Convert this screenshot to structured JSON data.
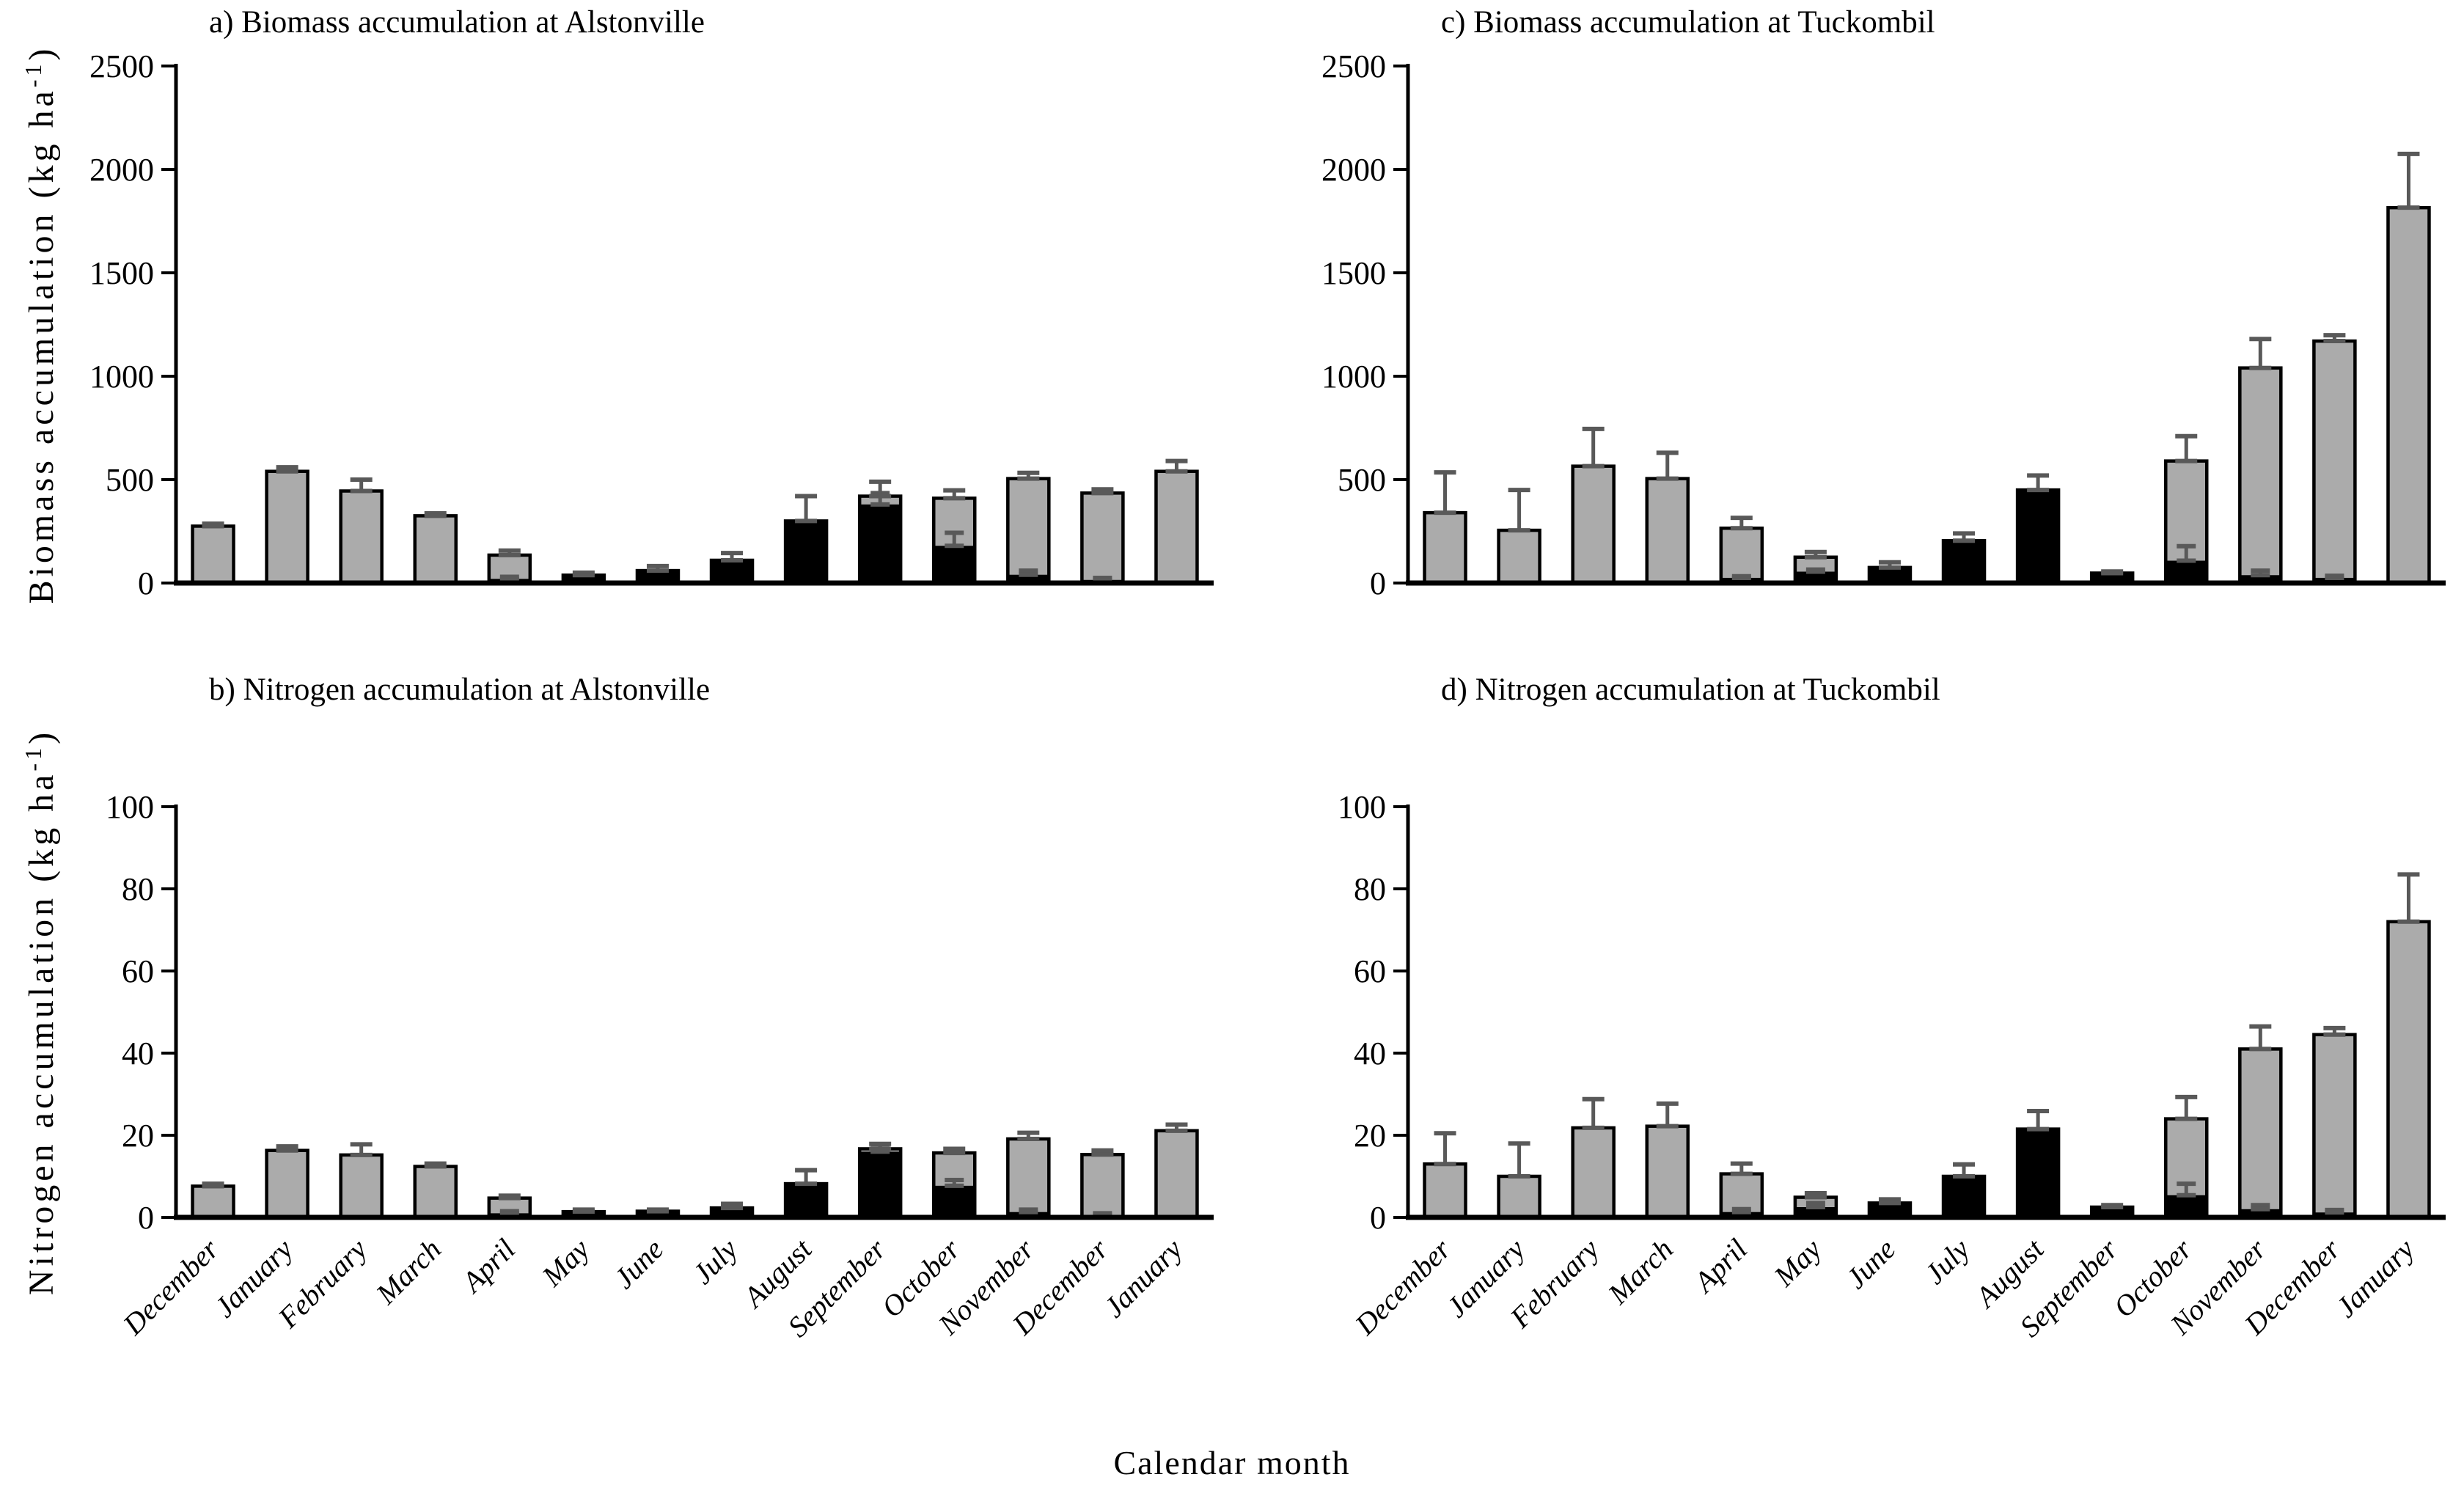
{
  "figure": {
    "xlabel": "Calendar month",
    "months": [
      "December",
      "January",
      "February",
      "March",
      "April",
      "May",
      "June",
      "July",
      "August",
      "September",
      "October",
      "November",
      "December",
      "January"
    ],
    "colors": {
      "grey_fill": "#ABABAB",
      "black_fill": "#000000",
      "bar_stroke": "#000000",
      "error_bar": "#595959",
      "axis": "#000000",
      "background": "#ffffff"
    }
  },
  "chart_data": [
    {
      "type": "bar",
      "panel": "a",
      "title": "a) Biomass accumulation at Alstonville",
      "ylabel": "Biomass accumulation (kg ha⁻¹)",
      "ylabel_parts": {
        "pre": "Biomass accumulation (kg ha",
        "sup": "-1",
        "post": ")"
      },
      "ylim": [
        0,
        2500
      ],
      "yticks": [
        0,
        500,
        1000,
        1500,
        2000,
        2500
      ],
      "grid": false,
      "legend": "none",
      "categories": [
        "December",
        "January",
        "February",
        "March",
        "April",
        "May",
        "June",
        "July",
        "August",
        "September",
        "October",
        "November",
        "December",
        "January"
      ],
      "series": [
        {
          "name": "black segment (lower)",
          "values": [
            0,
            0,
            0,
            0,
            20,
            38,
            60,
            110,
            300,
            380,
            180,
            40,
            15,
            0
          ]
        },
        {
          "name": "grey segment (upper)",
          "values": [
            275,
            540,
            445,
            325,
            115,
            0,
            0,
            0,
            0,
            40,
            230,
            465,
            420,
            540
          ]
        }
      ],
      "totals": [
        275,
        540,
        445,
        325,
        135,
        38,
        60,
        110,
        300,
        420,
        410,
        505,
        435,
        540
      ],
      "error_up_outer": [
        12,
        20,
        55,
        12,
        22,
        12,
        22,
        35,
        120,
        70,
        38,
        28,
        18,
        50
      ],
      "error_up_inner": [
        null,
        null,
        null,
        null,
        10,
        null,
        null,
        null,
        null,
        55,
        63,
        20,
        10,
        null
      ]
    },
    {
      "type": "bar",
      "panel": "c",
      "title": "c) Biomass accumulation at Tuckombil",
      "ylabel": null,
      "ylabel_parts": null,
      "ylim": [
        0,
        2500
      ],
      "yticks": [
        0,
        500,
        1000,
        1500,
        2000,
        2500
      ],
      "grid": false,
      "legend": "none",
      "categories": [
        "December",
        "January",
        "February",
        "March",
        "April",
        "May",
        "June",
        "July",
        "August",
        "September",
        "October",
        "November",
        "December",
        "January"
      ],
      "series": [
        {
          "name": "black segment (lower)",
          "values": [
            0,
            0,
            0,
            0,
            25,
            55,
            75,
            205,
            450,
            48,
            108,
            38,
            25,
            0
          ]
        },
        {
          "name": "grey segment (upper)",
          "values": [
            340,
            255,
            565,
            505,
            240,
            70,
            0,
            0,
            0,
            0,
            482,
            1002,
            1145,
            1815
          ]
        }
      ],
      "totals": [
        340,
        255,
        565,
        505,
        265,
        125,
        75,
        205,
        450,
        48,
        590,
        1040,
        1170,
        1815
      ],
      "error_up_outer": [
        195,
        195,
        180,
        125,
        50,
        25,
        25,
        35,
        70,
        8,
        120,
        140,
        28,
        260
      ],
      "error_up_inner": [
        null,
        null,
        null,
        null,
        8,
        10,
        null,
        null,
        null,
        null,
        70,
        22,
        10,
        null
      ]
    },
    {
      "type": "bar",
      "panel": "b",
      "title": "b) Nitrogen accumulation at Alstonville",
      "ylabel": "Nitrogen accumulation (kg ha⁻¹)",
      "ylabel_parts": {
        "pre": "Nitrogen accumulation (kg ha",
        "sup": "-1",
        "post": ")"
      },
      "ylim": [
        0,
        100
      ],
      "yticks": [
        0,
        20,
        40,
        60,
        80,
        100
      ],
      "grid": false,
      "legend": "none",
      "categories": [
        "December",
        "January",
        "February",
        "March",
        "April",
        "May",
        "June",
        "July",
        "August",
        "September",
        "October",
        "November",
        "December",
        "January"
      ],
      "series": [
        {
          "name": "black segment (lower)",
          "values": [
            0,
            0,
            0,
            0,
            1.0,
            1.4,
            1.5,
            2.3,
            8.2,
            16.0,
            7.7,
            1.3,
            0.6,
            0
          ]
        },
        {
          "name": "grey segment (upper)",
          "values": [
            7.6,
            16.3,
            15.2,
            12.4,
            3.7,
            0,
            0,
            0,
            0,
            0.7,
            8.0,
            17.8,
            14.7,
            21.1
          ]
        }
      ],
      "totals": [
        7.6,
        16.3,
        15.2,
        12.4,
        4.7,
        1.4,
        1.5,
        2.3,
        8.2,
        16.7,
        15.7,
        19.1,
        15.3,
        21.1
      ],
      "error_up_outer": [
        0.6,
        1.0,
        2.6,
        0.7,
        0.6,
        0.5,
        0.4,
        1.0,
        3.3,
        1.2,
        1.0,
        1.5,
        1.0,
        1.5
      ],
      "error_up_inner": [
        null,
        null,
        null,
        null,
        0.5,
        null,
        null,
        null,
        null,
        1.8,
        1.4,
        0.6,
        0.4,
        null
      ]
    },
    {
      "type": "bar",
      "panel": "d",
      "title": "d) Nitrogen accumulation at Tuckombil",
      "ylabel": null,
      "ylabel_parts": null,
      "ylim": [
        0,
        100
      ],
      "yticks": [
        0,
        20,
        40,
        60,
        80,
        100
      ],
      "grid": false,
      "legend": "none",
      "categories": [
        "December",
        "January",
        "February",
        "March",
        "April",
        "May",
        "June",
        "July",
        "August",
        "September",
        "October",
        "November",
        "December",
        "January"
      ],
      "series": [
        {
          "name": "black segment (lower)",
          "values": [
            0,
            0,
            0,
            0,
            1.3,
            2.5,
            3.5,
            10,
            21.5,
            2.5,
            5.4,
            2.0,
            1.2,
            0
          ]
        },
        {
          "name": "grey segment (upper)",
          "values": [
            13,
            10,
            21.8,
            22.2,
            9.3,
            2.4,
            0,
            0,
            0,
            0,
            18.6,
            39,
            43.3,
            72
          ]
        }
      ],
      "totals": [
        13,
        10,
        21.8,
        22.2,
        10.6,
        4.9,
        3.5,
        10,
        21.5,
        2.5,
        24,
        41,
        44.5,
        72
      ],
      "error_up_outer": [
        7.5,
        8,
        7,
        5.5,
        2.5,
        1.0,
        0.9,
        2.9,
        4.4,
        0.5,
        5.3,
        5.5,
        1.6,
        11.5
      ],
      "error_up_inner": [
        null,
        null,
        null,
        null,
        0.7,
        1.0,
        null,
        null,
        null,
        null,
        2.8,
        1.0,
        0.6,
        null
      ]
    }
  ]
}
